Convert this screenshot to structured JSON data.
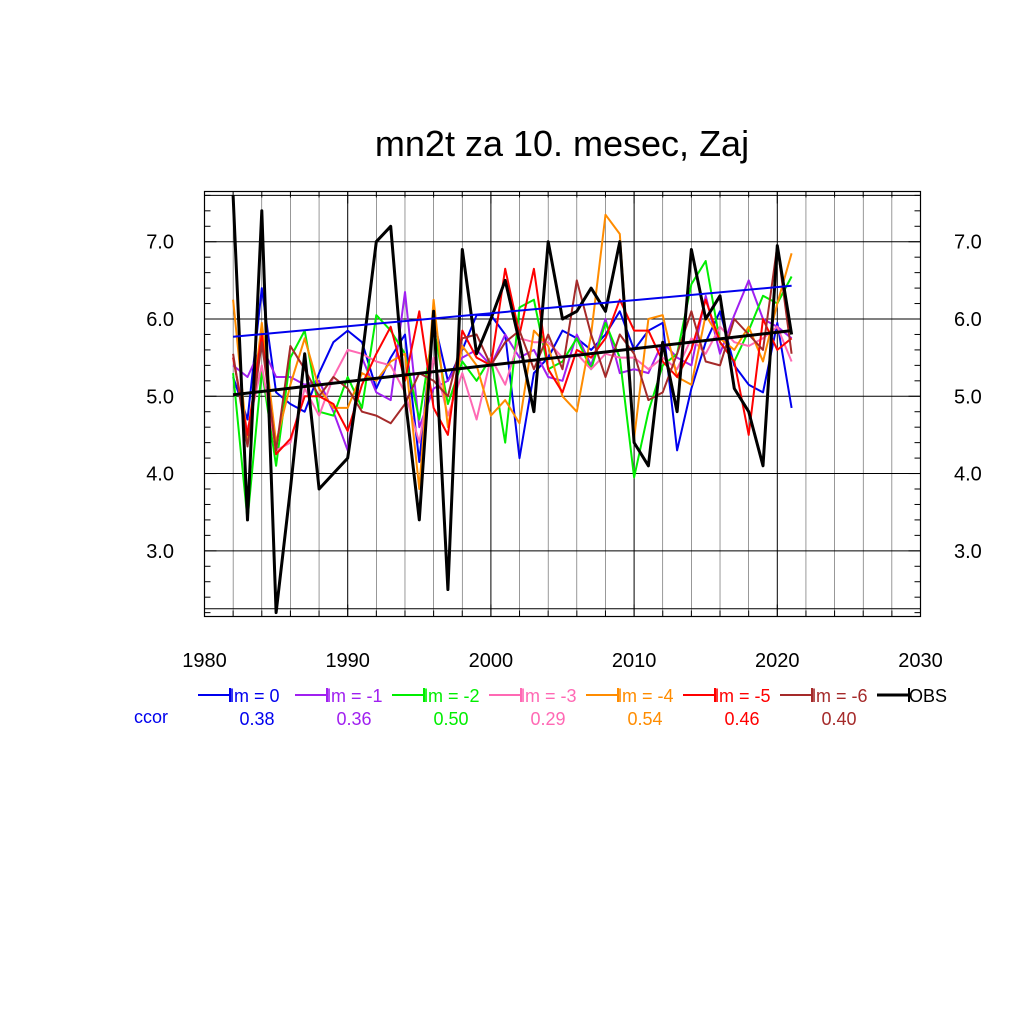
{
  "chart_data": {
    "type": "line",
    "title": "mn2t za 10. mesec, Zaj",
    "xlabel": "",
    "ylabel": "",
    "xlim": [
      1980,
      2030
    ],
    "ylim": [
      2.15,
      7.65
    ],
    "x_ticks": [
      "1980",
      "1990",
      "2000",
      "2010",
      "2020",
      "2030"
    ],
    "y_ticks": [
      "3.0",
      "4.0",
      "5.0",
      "6.0",
      "7.0"
    ],
    "grid": true,
    "legend_position": "bottom",
    "x": [
      1982,
      1983,
      1984,
      1985,
      1986,
      1987,
      1988,
      1989,
      1990,
      1991,
      1992,
      1993,
      1994,
      1995,
      1996,
      1997,
      1998,
      1999,
      2000,
      2001,
      2002,
      2003,
      2004,
      2005,
      2006,
      2007,
      2008,
      2009,
      2010,
      2011,
      2012,
      2013,
      2014,
      2015,
      2016,
      2017,
      2018,
      2019,
      2020,
      2021
    ],
    "series": [
      {
        "name": "lm = 0",
        "color": "#0000ee",
        "values": [
          5.25,
          4.7,
          6.4,
          5.05,
          4.9,
          4.8,
          5.3,
          5.7,
          5.85,
          5.7,
          5.1,
          5.5,
          5.8,
          4.15,
          6.0,
          5.2,
          5.6,
          6.05,
          6.05,
          5.8,
          4.2,
          5.3,
          5.5,
          5.85,
          5.75,
          5.6,
          5.8,
          6.1,
          5.6,
          5.85,
          5.95,
          4.3,
          5.1,
          5.7,
          6.1,
          5.4,
          5.15,
          5.05,
          5.95,
          4.85
        ]
      },
      {
        "name": "lm = -1",
        "color": "#a020f0",
        "values": [
          5.4,
          5.25,
          5.65,
          5.25,
          5.25,
          5.15,
          5.2,
          4.8,
          4.3,
          5.5,
          5.05,
          4.95,
          6.35,
          4.6,
          5.1,
          5.2,
          5.5,
          5.6,
          5.4,
          5.8,
          5.5,
          5.6,
          5.25,
          5.2,
          5.8,
          5.4,
          6.0,
          5.3,
          5.35,
          5.3,
          5.7,
          5.5,
          5.4,
          6.3,
          5.55,
          6.05,
          6.5,
          6.0,
          5.9,
          5.75
        ]
      },
      {
        "name": "lm = -2",
        "color": "#00ee00",
        "values": [
          5.3,
          3.4,
          5.35,
          4.1,
          5.5,
          5.85,
          4.8,
          4.75,
          5.25,
          4.85,
          6.05,
          5.85,
          5.55,
          4.7,
          5.9,
          4.9,
          5.45,
          5.2,
          5.5,
          4.4,
          6.15,
          6.25,
          5.35,
          5.45,
          5.75,
          5.35,
          5.95,
          5.5,
          3.95,
          4.8,
          5.4,
          5.55,
          6.45,
          6.75,
          5.7,
          5.45,
          5.85,
          6.3,
          6.2,
          6.55
        ]
      },
      {
        "name": "lm = -3",
        "color": "#ff69b4",
        "values": [
          5.5,
          4.55,
          5.4,
          4.3,
          4.4,
          5.1,
          4.75,
          5.25,
          5.6,
          5.55,
          5.45,
          5.4,
          5.05,
          4.4,
          5.5,
          4.75,
          5.3,
          4.7,
          5.5,
          5.15,
          5.75,
          5.7,
          5.7,
          5.5,
          5.55,
          5.35,
          5.55,
          5.5,
          5.5,
          5.35,
          5.5,
          5.35,
          5.75,
          5.55,
          5.9,
          5.7,
          5.65,
          5.75,
          5.9,
          5.45
        ]
      },
      {
        "name": "lm = -4",
        "color": "#ff8c00",
        "values": [
          6.25,
          4.4,
          5.95,
          4.4,
          5.15,
          5.75,
          5.1,
          4.85,
          4.85,
          5.3,
          5.2,
          5.45,
          5.55,
          3.8,
          6.25,
          4.6,
          5.65,
          5.4,
          4.75,
          4.95,
          4.65,
          5.85,
          5.65,
          5.0,
          4.8,
          5.8,
          7.35,
          7.1,
          4.45,
          6.0,
          6.05,
          5.25,
          5.15,
          6.05,
          5.75,
          5.6,
          5.9,
          5.45,
          6.2,
          6.85
        ]
      },
      {
        "name": "lm = -5",
        "color": "#ff0000",
        "values": [
          5.5,
          4.5,
          5.8,
          4.25,
          4.45,
          5.0,
          5.0,
          4.9,
          4.55,
          5.15,
          5.55,
          5.9,
          5.2,
          6.1,
          4.85,
          4.5,
          5.85,
          5.5,
          5.4,
          6.65,
          5.8,
          6.65,
          5.35,
          5.05,
          5.6,
          5.5,
          5.75,
          6.25,
          5.85,
          5.85,
          5.45,
          5.25,
          5.6,
          6.25,
          5.7,
          5.45,
          4.5,
          6.0,
          5.6,
          5.75
        ]
      },
      {
        "name": "lm = -6",
        "color": "#a52a2a",
        "values": [
          5.55,
          4.35,
          5.7,
          4.3,
          5.65,
          5.35,
          5.0,
          5.25,
          5.1,
          4.8,
          4.75,
          4.65,
          4.9,
          5.3,
          5.2,
          5.0,
          5.75,
          5.8,
          5.4,
          5.7,
          5.85,
          5.35,
          5.8,
          5.35,
          6.5,
          5.8,
          5.25,
          5.8,
          5.55,
          4.95,
          5.05,
          5.55,
          6.1,
          5.45,
          5.4,
          6.0,
          5.8,
          5.6,
          6.95,
          5.55
        ]
      },
      {
        "name": "OBS",
        "color": "#000000",
        "values": [
          7.6,
          3.4,
          7.4,
          2.2,
          3.8,
          5.55,
          3.8,
          4.0,
          4.2,
          5.5,
          7.0,
          7.2,
          5.0,
          3.4,
          6.1,
          2.5,
          6.9,
          5.55,
          6.0,
          6.5,
          5.7,
          4.8,
          7.0,
          6.0,
          6.1,
          6.4,
          6.1,
          7.0,
          4.4,
          4.1,
          5.7,
          4.8,
          6.9,
          6.0,
          6.3,
          5.1,
          4.8,
          4.1,
          6.95,
          5.8
        ]
      }
    ],
    "trend_lines": [
      {
        "series": "lm = 0",
        "x": [
          1982,
          2021
        ],
        "y": [
          5.77,
          6.43
        ]
      },
      {
        "series": "OBS",
        "x": [
          1982,
          2021
        ],
        "y": [
          5.02,
          5.85
        ]
      }
    ],
    "ccor_label": "ccor",
    "ccor": [
      "0.38",
      "0.36",
      "0.50",
      "0.29",
      "0.54",
      "0.46",
      "0.40"
    ]
  }
}
